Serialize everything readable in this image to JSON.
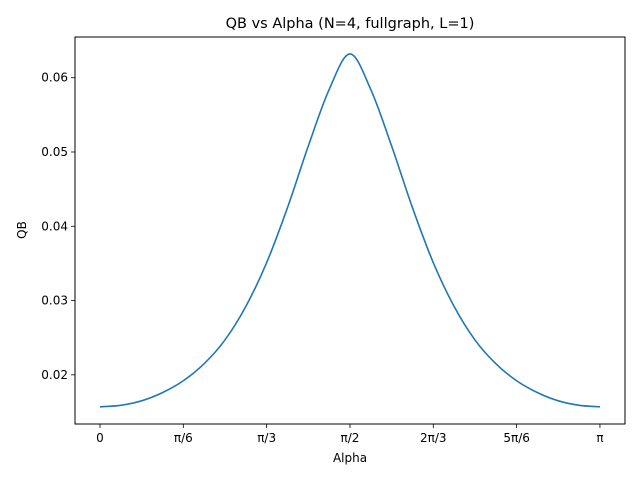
{
  "chart_data": {
    "type": "line",
    "title": "QB vs Alpha (N=4, fullgraph, L=1)",
    "xlabel": "Alpha",
    "ylabel": "QB",
    "xlim": [
      -0.157,
      3.299
    ],
    "ylim": [
      0.01338,
      0.06548
    ],
    "x_ticks": [
      {
        "value": 0,
        "label": "0"
      },
      {
        "value": 0.5236,
        "label": "π/6"
      },
      {
        "value": 1.0472,
        "label": "π/3"
      },
      {
        "value": 1.5708,
        "label": "π/2"
      },
      {
        "value": 2.0944,
        "label": "2π/3"
      },
      {
        "value": 2.618,
        "label": "5π/6"
      },
      {
        "value": 3.1416,
        "label": "π"
      }
    ],
    "y_ticks": [
      {
        "value": 0.02,
        "label": "0.02"
      },
      {
        "value": 0.03,
        "label": "0.03"
      },
      {
        "value": 0.04,
        "label": "0.04"
      },
      {
        "value": 0.05,
        "label": "0.05"
      },
      {
        "value": 0.06,
        "label": "0.06"
      }
    ],
    "grid": false,
    "series": [
      {
        "color": "#1f77b4",
        "x": [
          0,
          0.1309,
          0.2618,
          0.3927,
          0.5236,
          0.6545,
          0.7854,
          0.9163,
          1.0472,
          1.1781,
          1.309,
          1.4399,
          1.5708,
          1.7017,
          1.8326,
          1.9635,
          2.0944,
          2.2253,
          2.3562,
          2.4871,
          2.618,
          2.7489,
          2.8798,
          3.0107,
          3.1416
        ],
        "y": [
          0.0157,
          0.0159,
          0.0165,
          0.0176,
          0.0192,
          0.0215,
          0.0247,
          0.0292,
          0.0351,
          0.0425,
          0.0508,
          0.0584,
          0.0632,
          0.0584,
          0.0508,
          0.0425,
          0.0351,
          0.0292,
          0.0247,
          0.0215,
          0.0192,
          0.0176,
          0.0165,
          0.0159,
          0.0157
        ]
      }
    ]
  }
}
